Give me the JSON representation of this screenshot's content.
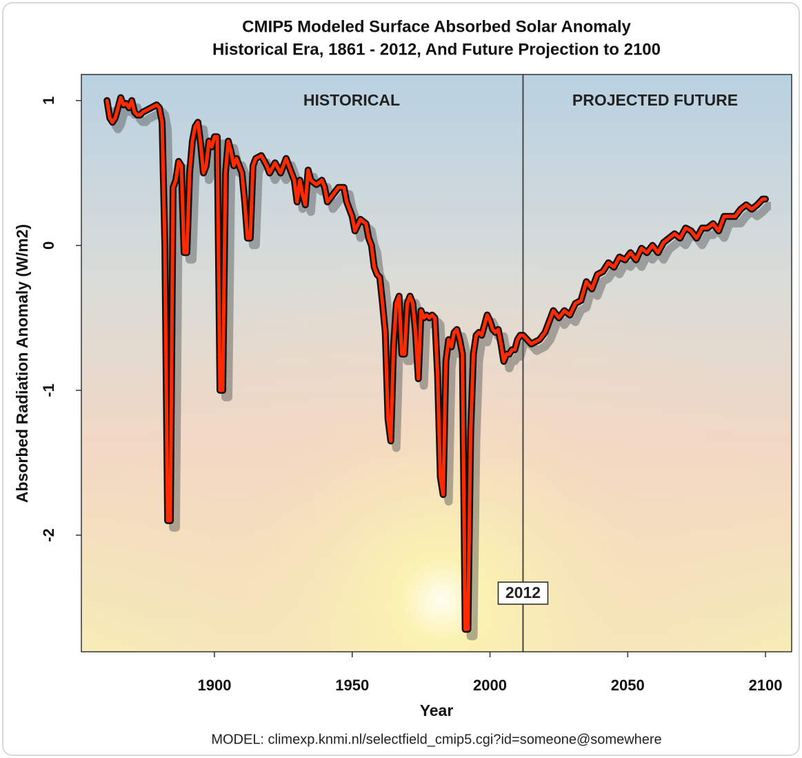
{
  "chart_data": {
    "type": "line",
    "title": "CMIP5 Modeled Surface Absorbed Solar Anomaly",
    "subtitle": "Historical Era, 1861 - 2012, And Future Projection to 2100",
    "x_label": "Year",
    "y_label": "Absorbed Radiation Anomaly (W/m2)",
    "caption": "MODEL: climexp.knmi.nl/selectfield_cmip5.cgi?id=someone@somewhere",
    "annotations": [
      "HISTORICAL",
      "PROJECTED FUTURE"
    ],
    "divider": 2012,
    "color": "#ff2a00",
    "xlim": [
      1851.7,
      2109.5
    ],
    "ylim": [
      -2.805,
      1.18
    ],
    "xticks": [
      1900,
      1950,
      2000,
      2050,
      2100
    ],
    "yticks": [
      1,
      0,
      -1,
      -2
    ],
    "x": [
      1861,
      1862,
      1863,
      1864,
      1865,
      1866,
      1867,
      1868,
      1869,
      1870,
      1871,
      1872,
      1873,
      1874,
      1875,
      1877,
      1879,
      1880,
      1881,
      1882,
      1883,
      1884,
      1885,
      1886,
      1887,
      1888,
      1889,
      1890,
      1891,
      1892,
      1893,
      1894,
      1895,
      1896,
      1897,
      1898,
      1899,
      1900,
      1901,
      1902,
      1903,
      1904,
      1905,
      1906,
      1907,
      1908,
      1909,
      1910,
      1911,
      1912,
      1913,
      1914,
      1915,
      1917,
      1919,
      1920,
      1922,
      1924,
      1926,
      1928,
      1929,
      1930,
      1931,
      1932,
      1933,
      1934,
      1935,
      1937,
      1939,
      1940,
      1941,
      1943,
      1945,
      1947,
      1948,
      1949,
      1950,
      1951,
      1953,
      1955,
      1956,
      1957,
      1958,
      1959,
      1960,
      1961,
      1962,
      1963,
      1964,
      1965,
      1966,
      1967,
      1968,
      1969,
      1970,
      1971,
      1972,
      1973,
      1974,
      1975,
      1976,
      1977,
      1978,
      1979,
      1980,
      1981,
      1982,
      1983,
      1984,
      1985,
      1986,
      1987,
      1988,
      1989,
      1990,
      1991,
      1992,
      1993,
      1994,
      1995,
      1996,
      1997,
      1998,
      1999,
      2000,
      2001,
      2002,
      2003,
      2004,
      2005,
      2006,
      2007,
      2008,
      2009,
      2010,
      2011,
      2012,
      2015,
      2018,
      2020,
      2022,
      2023,
      2025,
      2027,
      2029,
      2031,
      2033,
      2035,
      2037,
      2039,
      2041,
      2043,
      2045,
      2047,
      2049,
      2051,
      2053,
      2055,
      2057,
      2059,
      2061,
      2063,
      2065,
      2067,
      2069,
      2071,
      2073,
      2075,
      2077,
      2079,
      2081,
      2083,
      2085,
      2087,
      2089,
      2091,
      2093,
      2095,
      2097,
      2099,
      2100
    ],
    "values": [
      1.0,
      0.88,
      0.85,
      0.88,
      0.95,
      1.02,
      0.97,
      0.98,
      0.95,
      1.0,
      0.92,
      0.9,
      0.9,
      0.92,
      0.93,
      0.95,
      0.97,
      0.95,
      0.85,
      0.0,
      -1.9,
      -1.9,
      0.4,
      0.45,
      0.58,
      0.55,
      -0.05,
      -0.05,
      0.5,
      0.72,
      0.82,
      0.85,
      0.7,
      0.5,
      0.55,
      0.72,
      0.68,
      0.75,
      0.75,
      -1.0,
      -1.0,
      0.5,
      0.72,
      0.65,
      0.55,
      0.6,
      0.55,
      0.5,
      0.3,
      0.05,
      0.05,
      0.55,
      0.6,
      0.62,
      0.55,
      0.5,
      0.57,
      0.5,
      0.6,
      0.5,
      0.45,
      0.3,
      0.45,
      0.35,
      0.28,
      0.52,
      0.45,
      0.42,
      0.45,
      0.4,
      0.3,
      0.35,
      0.4,
      0.4,
      0.3,
      0.25,
      0.2,
      0.1,
      0.18,
      0.15,
      0.05,
      0.0,
      -0.15,
      -0.2,
      -0.22,
      -0.4,
      -0.6,
      -1.2,
      -1.35,
      -0.7,
      -0.4,
      -0.35,
      -0.75,
      -0.75,
      -0.4,
      -0.35,
      -0.4,
      -0.6,
      -0.92,
      -0.45,
      -0.5,
      -0.48,
      -0.5,
      -0.48,
      -0.5,
      -0.9,
      -1.6,
      -1.72,
      -0.8,
      -0.65,
      -0.7,
      -0.6,
      -0.58,
      -0.65,
      -0.75,
      -2.65,
      -2.65,
      -1.3,
      -0.75,
      -0.62,
      -0.6,
      -0.62,
      -0.55,
      -0.48,
      -0.52,
      -0.58,
      -0.6,
      -0.58,
      -0.68,
      -0.8,
      -0.75,
      -0.75,
      -0.72,
      -0.72,
      -0.65,
      -0.62,
      -0.62,
      -0.68,
      -0.65,
      -0.6,
      -0.5,
      -0.45,
      -0.5,
      -0.45,
      -0.48,
      -0.4,
      -0.38,
      -0.25,
      -0.3,
      -0.2,
      -0.18,
      -0.12,
      -0.15,
      -0.08,
      -0.1,
      -0.05,
      -0.1,
      -0.02,
      -0.05,
      0.0,
      -0.05,
      0.02,
      0.05,
      0.08,
      0.05,
      0.12,
      0.1,
      0.05,
      0.12,
      0.12,
      0.15,
      0.1,
      0.2,
      0.2,
      0.2,
      0.25,
      0.28,
      0.25,
      0.28,
      0.32,
      0.32
    ]
  }
}
